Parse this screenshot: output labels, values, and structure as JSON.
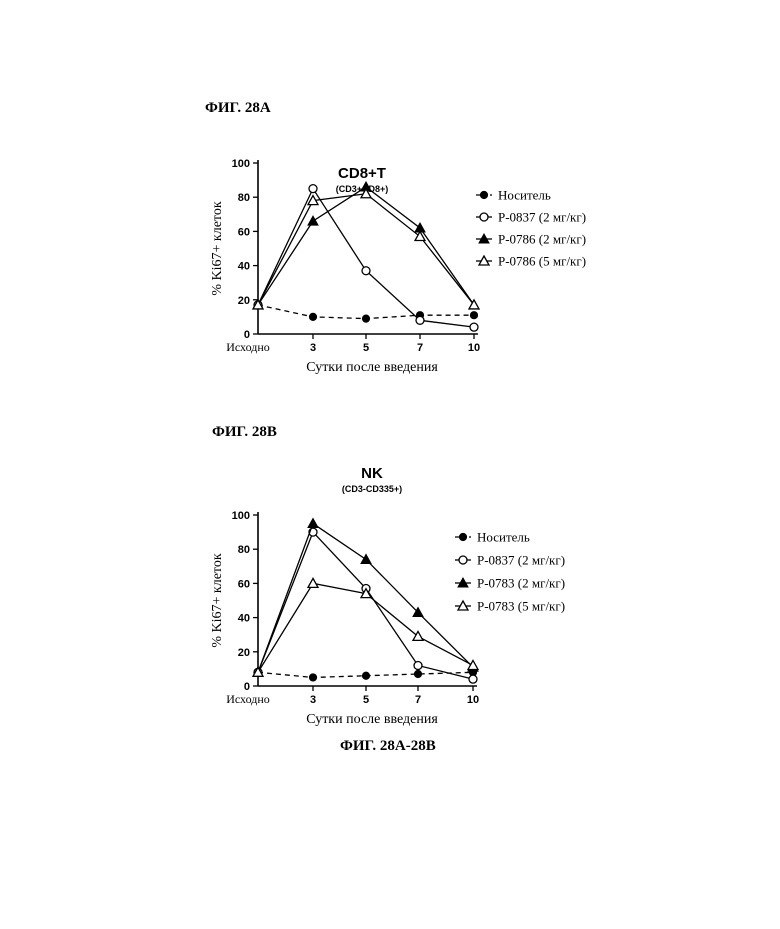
{
  "page_labels": {
    "fig_a": "ФИГ. 28А",
    "fig_b": "ФИГ. 28В",
    "caption": "ФИГ. 28А-28В"
  },
  "chart_data": [
    {
      "type": "line",
      "title": "CD8+T",
      "subtitle": "(CD3+CD8+)",
      "xlabel": "Сутки после введения",
      "ylabel": "% Ki67+ клеток",
      "categories": [
        "Исходно",
        "3",
        "5",
        "7",
        "10"
      ],
      "ylim": [
        0,
        100
      ],
      "yticks": [
        0,
        20,
        40,
        60,
        80,
        100
      ],
      "grid": false,
      "legend_position": "right",
      "series": [
        {
          "name": "Носитель",
          "values": [
            17,
            10,
            9,
            11,
            11
          ],
          "marker": "filled-circle",
          "line": "dashed"
        },
        {
          "name": "Р-0837 (2 мг/кг)",
          "values": [
            17,
            85,
            37,
            8,
            4
          ],
          "marker": "open-circle",
          "line": "solid"
        },
        {
          "name": "Р-0786 (2 мг/кг)",
          "values": [
            17,
            66,
            86,
            62,
            17
          ],
          "marker": "filled-triangle",
          "line": "solid"
        },
        {
          "name": "Р-0786 (5 мг/кг)",
          "values": [
            17,
            78,
            82,
            57,
            17
          ],
          "marker": "open-triangle",
          "line": "solid"
        }
      ]
    },
    {
      "type": "line",
      "title": "NK",
      "subtitle": "(CD3-CD335+)",
      "xlabel": "Сутки после введения",
      "ylabel": "% Ki67+ клеток",
      "categories": [
        "Исходно",
        "3",
        "5",
        "7",
        "10"
      ],
      "ylim": [
        0,
        100
      ],
      "yticks": [
        0,
        20,
        40,
        60,
        80,
        100
      ],
      "grid": false,
      "legend_position": "right",
      "series": [
        {
          "name": "Носитель",
          "values": [
            8,
            5,
            6,
            7,
            8
          ],
          "marker": "filled-circle",
          "line": "dashed"
        },
        {
          "name": "Р-0837 (2 мг/кг)",
          "values": [
            8,
            90,
            57,
            12,
            4
          ],
          "marker": "open-circle",
          "line": "solid"
        },
        {
          "name": "Р-0783 (2 мг/кг)",
          "values": [
            8,
            95,
            74,
            43,
            11
          ],
          "marker": "filled-triangle",
          "line": "solid"
        },
        {
          "name": "Р-0783 (5 мг/кг)",
          "values": [
            8,
            60,
            54,
            29,
            12
          ],
          "marker": "open-triangle",
          "line": "solid"
        }
      ]
    }
  ]
}
